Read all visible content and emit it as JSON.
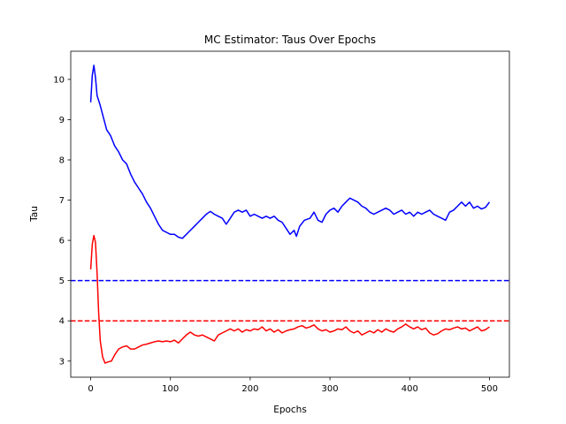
{
  "chart_data": {
    "type": "line",
    "title": "MC Estimator: Taus Over Epochs",
    "xlabel": "Epochs",
    "ylabel": "Tau",
    "xlim": [
      -25,
      525
    ],
    "ylim": [
      2.6,
      10.7
    ],
    "xticks": [
      0,
      100,
      200,
      300,
      400,
      500
    ],
    "yticks": [
      3,
      4,
      5,
      6,
      7,
      8,
      9,
      10
    ],
    "grid": false,
    "legend": "none",
    "series": [
      {
        "color": "#0000ff",
        "style": "solid",
        "points": [
          [
            0,
            9.43
          ],
          [
            2,
            10.1
          ],
          [
            4,
            10.35
          ],
          [
            6,
            10.05
          ],
          [
            8,
            9.6
          ],
          [
            12,
            9.35
          ],
          [
            16,
            9.05
          ],
          [
            20,
            8.75
          ],
          [
            25,
            8.6
          ],
          [
            30,
            8.35
          ],
          [
            35,
            8.2
          ],
          [
            40,
            8.0
          ],
          [
            45,
            7.9
          ],
          [
            50,
            7.65
          ],
          [
            55,
            7.45
          ],
          [
            60,
            7.3
          ],
          [
            65,
            7.15
          ],
          [
            70,
            6.95
          ],
          [
            75,
            6.8
          ],
          [
            80,
            6.6
          ],
          [
            85,
            6.4
          ],
          [
            90,
            6.25
          ],
          [
            95,
            6.2
          ],
          [
            100,
            6.15
          ],
          [
            105,
            6.15
          ],
          [
            110,
            6.08
          ],
          [
            115,
            6.05
          ],
          [
            120,
            6.15
          ],
          [
            125,
            6.25
          ],
          [
            130,
            6.35
          ],
          [
            135,
            6.45
          ],
          [
            140,
            6.55
          ],
          [
            145,
            6.65
          ],
          [
            150,
            6.72
          ],
          [
            155,
            6.65
          ],
          [
            160,
            6.6
          ],
          [
            165,
            6.55
          ],
          [
            170,
            6.4
          ],
          [
            175,
            6.55
          ],
          [
            180,
            6.7
          ],
          [
            185,
            6.75
          ],
          [
            190,
            6.7
          ],
          [
            195,
            6.75
          ],
          [
            200,
            6.6
          ],
          [
            205,
            6.65
          ],
          [
            210,
            6.6
          ],
          [
            215,
            6.55
          ],
          [
            220,
            6.6
          ],
          [
            225,
            6.55
          ],
          [
            230,
            6.6
          ],
          [
            235,
            6.5
          ],
          [
            240,
            6.45
          ],
          [
            245,
            6.3
          ],
          [
            250,
            6.15
          ],
          [
            255,
            6.25
          ],
          [
            258,
            6.1
          ],
          [
            262,
            6.35
          ],
          [
            268,
            6.5
          ],
          [
            275,
            6.55
          ],
          [
            280,
            6.7
          ],
          [
            285,
            6.5
          ],
          [
            290,
            6.45
          ],
          [
            295,
            6.65
          ],
          [
            300,
            6.75
          ],
          [
            305,
            6.8
          ],
          [
            310,
            6.7
          ],
          [
            315,
            6.85
          ],
          [
            320,
            6.95
          ],
          [
            325,
            7.05
          ],
          [
            330,
            7.0
          ],
          [
            335,
            6.95
          ],
          [
            340,
            6.85
          ],
          [
            345,
            6.8
          ],
          [
            350,
            6.7
          ],
          [
            355,
            6.65
          ],
          [
            360,
            6.7
          ],
          [
            365,
            6.75
          ],
          [
            370,
            6.8
          ],
          [
            375,
            6.75
          ],
          [
            380,
            6.65
          ],
          [
            385,
            6.7
          ],
          [
            390,
            6.75
          ],
          [
            395,
            6.65
          ],
          [
            400,
            6.7
          ],
          [
            405,
            6.6
          ],
          [
            410,
            6.7
          ],
          [
            415,
            6.65
          ],
          [
            420,
            6.7
          ],
          [
            425,
            6.75
          ],
          [
            430,
            6.65
          ],
          [
            435,
            6.6
          ],
          [
            440,
            6.55
          ],
          [
            445,
            6.5
          ],
          [
            450,
            6.7
          ],
          [
            455,
            6.75
          ],
          [
            460,
            6.85
          ],
          [
            465,
            6.95
          ],
          [
            470,
            6.85
          ],
          [
            475,
            6.95
          ],
          [
            480,
            6.8
          ],
          [
            485,
            6.85
          ],
          [
            490,
            6.78
          ],
          [
            495,
            6.82
          ],
          [
            500,
            6.95
          ]
        ]
      },
      {
        "color": "#ff0000",
        "style": "solid",
        "points": [
          [
            0,
            5.28
          ],
          [
            2,
            5.9
          ],
          [
            4,
            6.12
          ],
          [
            6,
            5.95
          ],
          [
            8,
            5.2
          ],
          [
            10,
            4.2
          ],
          [
            12,
            3.5
          ],
          [
            15,
            3.1
          ],
          [
            18,
            2.95
          ],
          [
            22,
            2.98
          ],
          [
            26,
            3.0
          ],
          [
            30,
            3.15
          ],
          [
            35,
            3.3
          ],
          [
            40,
            3.35
          ],
          [
            45,
            3.38
          ],
          [
            50,
            3.3
          ],
          [
            55,
            3.3
          ],
          [
            60,
            3.35
          ],
          [
            65,
            3.4
          ],
          [
            70,
            3.42
          ],
          [
            75,
            3.45
          ],
          [
            80,
            3.48
          ],
          [
            85,
            3.5
          ],
          [
            90,
            3.48
          ],
          [
            95,
            3.5
          ],
          [
            100,
            3.48
          ],
          [
            105,
            3.52
          ],
          [
            110,
            3.45
          ],
          [
            115,
            3.55
          ],
          [
            120,
            3.65
          ],
          [
            125,
            3.72
          ],
          [
            130,
            3.65
          ],
          [
            135,
            3.62
          ],
          [
            140,
            3.65
          ],
          [
            145,
            3.6
          ],
          [
            150,
            3.55
          ],
          [
            155,
            3.5
          ],
          [
            160,
            3.65
          ],
          [
            165,
            3.7
          ],
          [
            170,
            3.75
          ],
          [
            175,
            3.8
          ],
          [
            180,
            3.75
          ],
          [
            185,
            3.8
          ],
          [
            190,
            3.72
          ],
          [
            195,
            3.78
          ],
          [
            200,
            3.75
          ],
          [
            205,
            3.8
          ],
          [
            210,
            3.78
          ],
          [
            215,
            3.85
          ],
          [
            220,
            3.75
          ],
          [
            225,
            3.8
          ],
          [
            230,
            3.72
          ],
          [
            235,
            3.78
          ],
          [
            240,
            3.7
          ],
          [
            245,
            3.75
          ],
          [
            250,
            3.78
          ],
          [
            255,
            3.8
          ],
          [
            260,
            3.85
          ],
          [
            265,
            3.88
          ],
          [
            270,
            3.82
          ],
          [
            275,
            3.85
          ],
          [
            280,
            3.9
          ],
          [
            285,
            3.8
          ],
          [
            290,
            3.75
          ],
          [
            295,
            3.78
          ],
          [
            300,
            3.72
          ],
          [
            305,
            3.75
          ],
          [
            310,
            3.8
          ],
          [
            315,
            3.78
          ],
          [
            320,
            3.85
          ],
          [
            325,
            3.75
          ],
          [
            330,
            3.7
          ],
          [
            335,
            3.75
          ],
          [
            340,
            3.65
          ],
          [
            345,
            3.7
          ],
          [
            350,
            3.75
          ],
          [
            355,
            3.7
          ],
          [
            360,
            3.78
          ],
          [
            365,
            3.72
          ],
          [
            370,
            3.8
          ],
          [
            375,
            3.75
          ],
          [
            380,
            3.72
          ],
          [
            385,
            3.8
          ],
          [
            390,
            3.85
          ],
          [
            395,
            3.92
          ],
          [
            400,
            3.85
          ],
          [
            405,
            3.8
          ],
          [
            410,
            3.85
          ],
          [
            415,
            3.78
          ],
          [
            420,
            3.82
          ],
          [
            425,
            3.7
          ],
          [
            430,
            3.65
          ],
          [
            435,
            3.68
          ],
          [
            440,
            3.75
          ],
          [
            445,
            3.8
          ],
          [
            450,
            3.78
          ],
          [
            455,
            3.82
          ],
          [
            460,
            3.85
          ],
          [
            465,
            3.8
          ],
          [
            470,
            3.82
          ],
          [
            475,
            3.75
          ],
          [
            480,
            3.8
          ],
          [
            485,
            3.85
          ],
          [
            490,
            3.75
          ],
          [
            495,
            3.78
          ],
          [
            500,
            3.85
          ]
        ]
      }
    ],
    "hlines": [
      {
        "y": 5,
        "color": "#0000ff",
        "style": "dashed"
      },
      {
        "y": 4,
        "color": "#ff0000",
        "style": "dashed"
      }
    ]
  }
}
